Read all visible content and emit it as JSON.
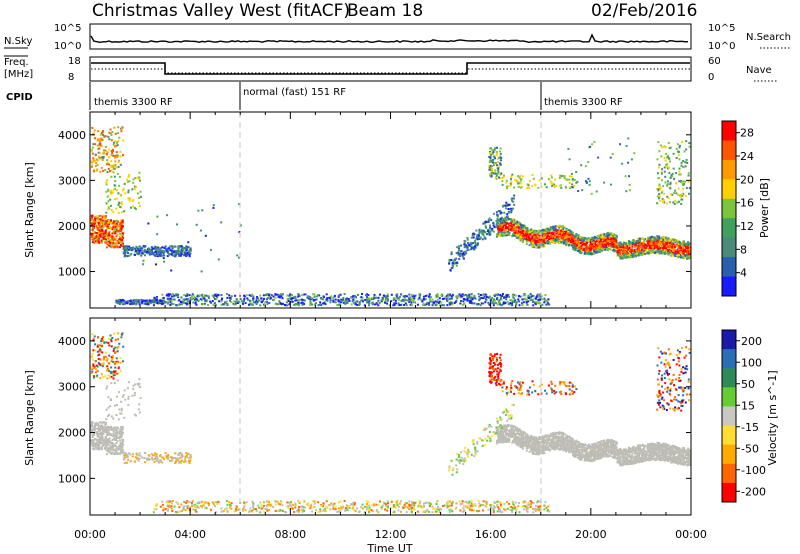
{
  "header": {
    "station": "Christmas Valley West (fitACF)",
    "beam": "Beam 18",
    "date": "02/Feb/2016"
  },
  "top_panels": {
    "nsky_label": "N.Sky",
    "nsky_ticks": [
      "10^5",
      "10^0"
    ],
    "nsearch_label": "N.Search",
    "freq_label": "Freq.",
    "freq_unit": "[MHz]",
    "freq_ticks": [
      "18",
      "8"
    ],
    "nave_label": "Nave",
    "nave_ticks": [
      "60",
      "0"
    ],
    "cpid_label": "CPID",
    "cpid_segments": [
      "themis 3300 RF",
      "normal (fast) 151 RF",
      "themis 3300 RF"
    ]
  },
  "colors": {
    "power_scale": [
      "#1a1aff",
      "#2a5fb0",
      "#4a8a7a",
      "#40a060",
      "#7cc43c",
      "#ffd000",
      "#ff9900",
      "#ff5500",
      "#ff0000"
    ],
    "velocity_scale": [
      "#ff0000",
      "#ff6600",
      "#ffaa00",
      "#ffdd33",
      "#c8c8c0",
      "#66cc33",
      "#2e8b57",
      "#2a6fb5",
      "#1a1aaa"
    ],
    "gs_gray": "#bdbdb5"
  },
  "chart_data": [
    {
      "type": "heatmap",
      "title": "",
      "xlabel": "Time UT",
      "ylabel": "Slant Range [km]",
      "xlim": [
        "00:00",
        "24:00"
      ],
      "ylim": [
        200,
        4500
      ],
      "x_ticks": [
        "00:00",
        "04:00",
        "08:00",
        "12:00",
        "16:00",
        "20:00",
        "00:00"
      ],
      "y_ticks": [
        1000,
        2000,
        3000,
        4000
      ],
      "colorbar_label": "Power [dB]",
      "colorbar_ticks": [
        4,
        8,
        12,
        16,
        20,
        24,
        28
      ],
      "colorbar_range": [
        0,
        30
      ],
      "cpid_boundaries_ut": [
        6,
        18
      ]
    },
    {
      "type": "heatmap",
      "title": "",
      "xlabel": "Time UT",
      "ylabel": "Slant Range [km]",
      "xlim": [
        "00:00",
        "24:00"
      ],
      "ylim": [
        200,
        4500
      ],
      "x_ticks": [
        "00:00",
        "04:00",
        "08:00",
        "12:00",
        "16:00",
        "20:00",
        "00:00"
      ],
      "y_ticks": [
        1000,
        2000,
        3000,
        4000
      ],
      "colorbar_label": "Velocity [m s^-1]",
      "colorbar_ticks": [
        -200,
        -100,
        -50,
        -15,
        15,
        50,
        100,
        200
      ],
      "colorbar_tick_labels": [
        "-200",
        "-100",
        "-50",
        "-15",
        "15",
        "50",
        "100",
        "200"
      ],
      "ground_scatter_color": "gray",
      "cpid_boundaries_ut": [
        6,
        18
      ]
    }
  ]
}
